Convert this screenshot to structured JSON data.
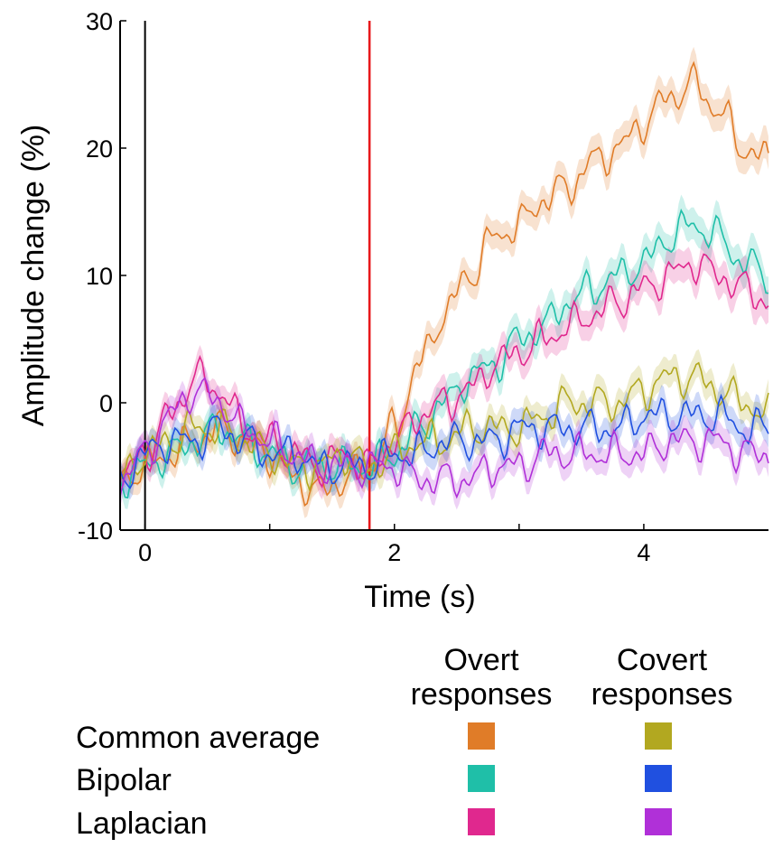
{
  "chart_data": {
    "type": "line",
    "xlabel": "Time (s)",
    "ylabel": "Amplitude change (%)",
    "xlim": [
      -0.2,
      5.0
    ],
    "ylim": [
      -10,
      30
    ],
    "x_ticks": [
      0,
      2,
      4
    ],
    "x_minor_ticks": [
      1,
      3
    ],
    "y_ticks": [
      -10,
      0,
      10,
      20,
      30
    ],
    "vlines": [
      {
        "x": 0,
        "color": "#000000"
      },
      {
        "x": 1.8,
        "color": "#e8191c"
      }
    ],
    "x": [
      -0.2,
      0,
      0.2,
      0.4,
      0.6,
      0.8,
      1,
      1.2,
      1.4,
      1.6,
      1.8,
      2,
      2.2,
      2.4,
      2.6,
      2.8,
      3,
      3.2,
      3.4,
      3.6,
      3.8,
      4,
      4.2,
      4.4,
      4.6,
      4.8,
      5
    ],
    "series": [
      {
        "name": "Common average / Overt responses",
        "color": "#e07c28",
        "values": [
          -6,
          -5,
          -4,
          -3,
          -2,
          -3,
          -4,
          -6,
          -7,
          -6,
          -5,
          -2,
          3,
          7,
          10,
          13,
          14,
          16,
          17,
          19,
          20,
          22,
          24,
          25,
          23,
          20,
          19
        ]
      },
      {
        "name": "Bipolar / Overt responses",
        "color": "#1fbfa8",
        "values": [
          -6,
          -5,
          -4,
          -3,
          -2,
          -3,
          -4,
          -5,
          -5,
          -5,
          -5,
          -4,
          -2,
          0,
          2,
          3,
          5,
          6,
          8,
          9,
          10,
          11,
          13,
          14,
          13,
          11,
          10
        ]
      },
      {
        "name": "Laplacian / Overt responses",
        "color": "#e0288e",
        "values": [
          -6,
          -4,
          -1,
          2,
          1,
          -2,
          -3,
          -4,
          -5,
          -4,
          -5,
          -3,
          -1,
          0,
          1,
          3,
          4,
          5,
          6,
          7,
          8,
          9,
          10,
          11,
          10,
          9,
          8
        ]
      },
      {
        "name": "Common average / Covert responses",
        "color": "#b2a820",
        "values": [
          -6,
          -4,
          -3,
          -2,
          -2,
          -3,
          -4,
          -5,
          -5,
          -4,
          -5,
          -4,
          -3,
          -3,
          -2,
          -2,
          -2,
          -1,
          0,
          0,
          0,
          1,
          2,
          2,
          1,
          0,
          -1
        ]
      },
      {
        "name": "Bipolar / Covert responses",
        "color": "#2050e0",
        "values": [
          -6,
          -4,
          -3,
          -3,
          -2,
          -3,
          -4,
          -4,
          -5,
          -5,
          -5,
          -4,
          -4,
          -3,
          -3,
          -3,
          -2,
          -2,
          -2,
          -2,
          -2,
          -1,
          -1,
          -1,
          -1,
          -2,
          -2
        ]
      },
      {
        "name": "Laplacian / Covert responses",
        "color": "#b030d8",
        "values": [
          -6,
          -4,
          -1,
          1,
          0,
          -2,
          -3,
          -4,
          -5,
          -5,
          -5,
          -5,
          -6,
          -6,
          -6,
          -5,
          -5,
          -4,
          -4,
          -4,
          -4,
          -4,
          -3,
          -3,
          -3,
          -4,
          -4
        ]
      }
    ],
    "legend": {
      "columns": [
        "Overt\nresponses",
        "Covert\nresponses"
      ],
      "rows": [
        "Common average",
        "Bipolar",
        "Laplacian"
      ],
      "colors": [
        [
          "#e07c28",
          "#b2a820"
        ],
        [
          "#1fbfa8",
          "#2050e0"
        ],
        [
          "#e0288e",
          "#b030d8"
        ]
      ]
    }
  }
}
